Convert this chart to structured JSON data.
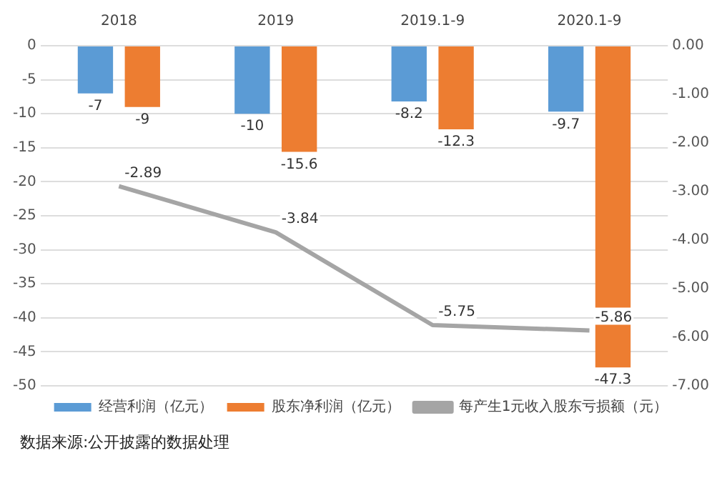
{
  "chart_data": {
    "type": "bar",
    "categories": [
      "2018",
      "2019",
      "2019.1-9",
      "2020.1-9"
    ],
    "series": [
      {
        "name": "经营利润（亿元）",
        "color": "#5b9bd5",
        "values": [
          -7,
          -10,
          -8.2,
          -9.7
        ]
      },
      {
        "name": "股东净利润（亿元）",
        "color": "#ed7d31",
        "values": [
          -9,
          -15.6,
          -12.3,
          -47.3
        ]
      },
      {
        "name": "每产生1元收入股东亏损额（元）",
        "type": "line",
        "axis": "y2",
        "color": "#a5a5a5",
        "values": [
          -2.89,
          -3.84,
          -5.75,
          -5.86
        ]
      }
    ],
    "ylim": [
      -50,
      0
    ],
    "yticks": [
      0,
      -5,
      -10,
      -15,
      -20,
      -25,
      -30,
      -35,
      -40,
      -45,
      -50
    ],
    "y2lim": [
      -7,
      0
    ],
    "y2ticks": [
      {
        "value": 0,
        "label": "0.00"
      },
      {
        "value": -1,
        "label": "-1.00"
      },
      {
        "value": -2,
        "label": "-2.00"
      },
      {
        "value": -3,
        "label": "-3.00"
      },
      {
        "value": -4,
        "label": "-4.00"
      },
      {
        "value": -5,
        "label": "-5.00"
      },
      {
        "value": -6,
        "label": "-6.00"
      },
      {
        "value": -7,
        "label": "-7.00"
      }
    ],
    "grid": "y",
    "legend": "bottom",
    "data_labels": true,
    "marker": "none",
    "annotations": [
      "数据来源:公开披露的数据处理"
    ]
  }
}
